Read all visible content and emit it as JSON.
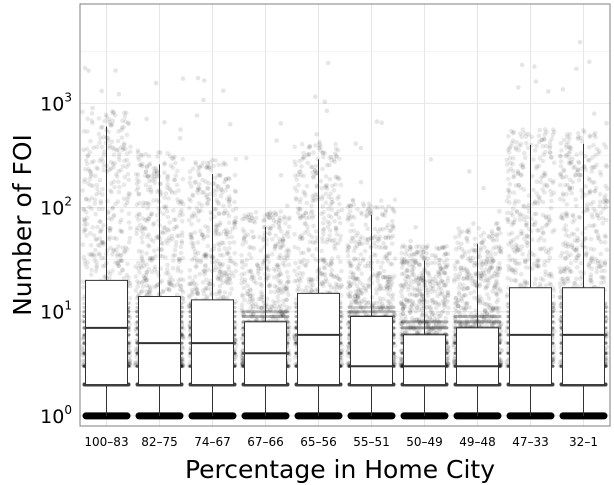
{
  "chart_data": {
    "type": "box",
    "xlabel": "Percentage in Home City",
    "ylabel": "Number of FOI",
    "yscale": "log10",
    "ylim": [
      0.8,
      9000
    ],
    "y_ticks": [
      {
        "base": "10",
        "exp": "0"
      },
      {
        "base": "10",
        "exp": "1"
      },
      {
        "base": "10",
        "exp": "2"
      },
      {
        "base": "10",
        "exp": "3"
      }
    ],
    "y_tick_values": [
      1,
      10,
      100,
      1000
    ],
    "grid": true,
    "categories": [
      "100–83",
      "82–75",
      "74–67",
      "67–66",
      "65–56",
      "55–51",
      "50–49",
      "49–48",
      "47–33",
      "32–1"
    ],
    "boxes": [
      {
        "whisker_low": 1,
        "q1": 2,
        "median": 7,
        "q3": 20,
        "whisker_high": 600
      },
      {
        "whisker_low": 1,
        "q1": 2,
        "median": 5,
        "q3": 14,
        "whisker_high": 260
      },
      {
        "whisker_low": 1,
        "q1": 2,
        "median": 5,
        "q3": 13,
        "whisker_high": 210
      },
      {
        "whisker_low": 1,
        "q1": 2,
        "median": 4,
        "q3": 8,
        "whisker_high": 65
      },
      {
        "whisker_low": 1,
        "q1": 2,
        "median": 6,
        "q3": 15,
        "whisker_high": 290
      },
      {
        "whisker_low": 1,
        "q1": 2,
        "median": 3,
        "q3": 9,
        "whisker_high": 85
      },
      {
        "whisker_low": 1,
        "q1": 2,
        "median": 3,
        "q3": 6,
        "whisker_high": 31
      },
      {
        "whisker_low": 1,
        "q1": 2,
        "median": 3,
        "q3": 7,
        "whisker_high": 45
      },
      {
        "whisker_low": 1,
        "q1": 2,
        "median": 6,
        "q3": 17,
        "whisker_high": 400
      },
      {
        "whisker_low": 1,
        "q1": 2,
        "median": 6,
        "q3": 17,
        "whisker_high": 410
      }
    ],
    "points": "dense semi-transparent jittered observations per category, concentrated at low counts with sparse outliers up to ~5000"
  },
  "colors": {
    "background": "#ffffff",
    "grid": "#e6e6e6",
    "panel_border": "#7f7f7f",
    "box_fill": "#ffffff",
    "box_line": "#333333",
    "points": "#000000"
  }
}
